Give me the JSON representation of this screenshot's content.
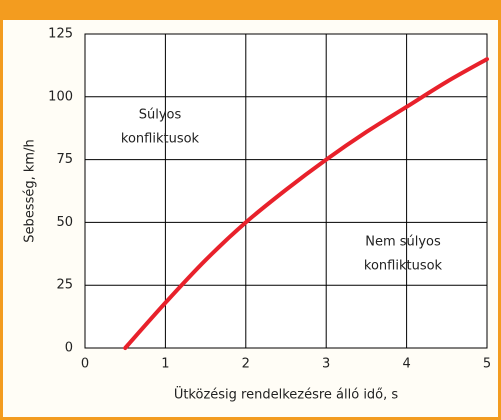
{
  "chart_data": {
    "type": "line",
    "x_label": "Ütközésig rendelkezésre álló idő, s",
    "y_label": "Sebesség, km/h",
    "x": [
      0.5,
      1,
      1.5,
      2,
      2.5,
      3,
      3.5,
      4,
      4.5,
      5
    ],
    "series": [
      {
        "color": "#e8212b",
        "values": [
          0,
          18,
          35,
          50,
          63,
          75,
          86,
          96,
          106,
          115
        ]
      }
    ],
    "annotations": [
      [
        "Súlyos",
        "konfliktusok"
      ],
      [
        "Nem súlyos",
        "konfliktusok"
      ]
    ],
    "xlim": [
      0,
      5
    ],
    "xticks": [
      0,
      1,
      2,
      3,
      4,
      5
    ],
    "ylim": [
      0,
      125
    ],
    "yticks": [
      0,
      25,
      50,
      75,
      100,
      125
    ],
    "grid": true
  }
}
